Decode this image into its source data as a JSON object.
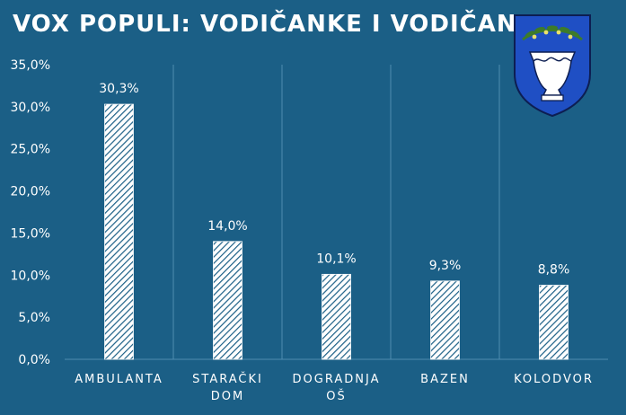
{
  "title": "VOX POPULI: VODIČANKE I VODIČANI",
  "colors": {
    "background": "#1b5f86",
    "bar_fill": "#ffffff",
    "bar_hatch": "#1b5f86",
    "text": "#ffffff",
    "gridline": "#4f8db0",
    "crest_blue": "#1f4fc4",
    "crest_olive": "#3d7b2a"
  },
  "crest": {
    "icon": "vodice-coat-of-arms"
  },
  "chart_data": {
    "type": "bar",
    "categories": [
      "AMBULANTA",
      "STARAČKI DOM",
      "DOGRADNJA OŠ",
      "BAZEN",
      "KOLODVOR"
    ],
    "category_lines": [
      [
        "AMBULANTA"
      ],
      [
        "STARAČKI",
        "DOM"
      ],
      [
        "DOGRADNJA",
        "OŠ"
      ],
      [
        "BAZEN"
      ],
      [
        "KOLODVOR"
      ]
    ],
    "values": [
      30.3,
      14.0,
      10.1,
      9.3,
      8.8
    ],
    "data_labels": [
      "30,3%",
      "14,0%",
      "10,1%",
      "9,3%",
      "8,8%"
    ],
    "ylim": [
      0,
      35
    ],
    "yticks": [
      0,
      5,
      10,
      15,
      20,
      25,
      30,
      35
    ],
    "ytick_labels": [
      "0,0%",
      "5,0%",
      "10,0%",
      "15,0%",
      "20,0%",
      "25,0%",
      "30,0%",
      "35,0%"
    ],
    "grid": "vertical-category-separators",
    "legend": "none",
    "xlabel": "",
    "ylabel": ""
  }
}
